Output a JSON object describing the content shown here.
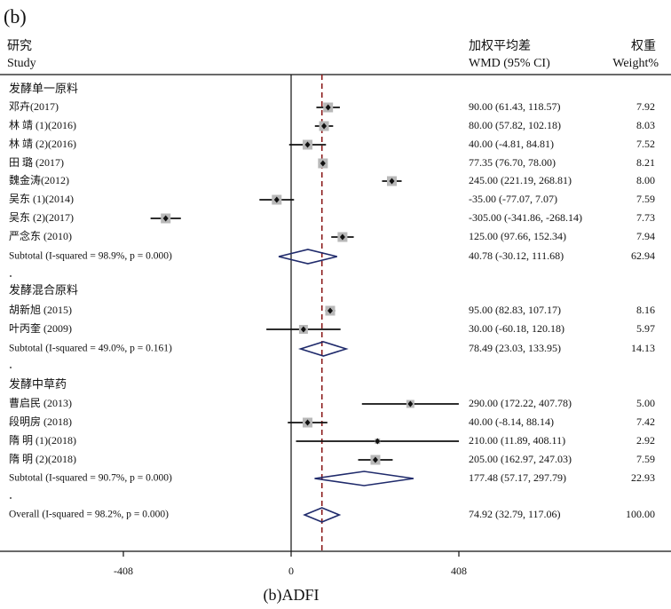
{
  "panel_label": "(b)",
  "headers": {
    "study_cn": "研究",
    "study_en": "Study",
    "wmd_cn": "加权平均差",
    "wmd_en": "WMD (95% CI)",
    "weight_cn": "权重",
    "weight_en": "Weight%"
  },
  "caption": "(b)ADFI",
  "colors": {
    "box": "#b8b8b8",
    "diamond": "#1f2a6b",
    "overall_line": "#8b1a1a",
    "ink": "#111111"
  },
  "chart_data": {
    "type": "forest",
    "title": "(b)ADFI",
    "xlabel": "",
    "ylabel": "",
    "xlim": [
      -408,
      408
    ],
    "xticks": [
      "-408",
      "0",
      "408"
    ],
    "xtick_values": [
      -408,
      0,
      408
    ],
    "null_line": 0,
    "overall_estimate": 74.92,
    "groups": [
      {
        "name": "发酵单一原料",
        "studies": [
          {
            "label": "邓卉(2017)",
            "est": 90.0,
            "lo": 61.43,
            "hi": 118.57,
            "ci_text": "90.00 (61.43, 118.57)",
            "weight": "7.92",
            "box": 11
          },
          {
            "label": "林 靖 (1)(2016)",
            "est": 80.0,
            "lo": 57.82,
            "hi": 102.18,
            "ci_text": "80.00 (57.82, 102.18)",
            "weight": "8.03",
            "box": 11
          },
          {
            "label": "林 靖 (2)(2016)",
            "est": 40.0,
            "lo": -4.81,
            "hi": 84.81,
            "ci_text": "40.00 (-4.81, 84.81)",
            "weight": "7.52",
            "box": 11
          },
          {
            "label": "田 璐 (2017)",
            "est": 77.35,
            "lo": 76.7,
            "hi": 78.0,
            "ci_text": "77.35 (76.70, 78.00)",
            "weight": "8.21",
            "box": 11
          },
          {
            "label": "魏金涛(2012)",
            "est": 245.0,
            "lo": 221.19,
            "hi": 268.81,
            "ci_text": "245.00 (221.19, 268.81)",
            "weight": "8.00",
            "box": 11
          },
          {
            "label": "吴东 (1)(2014)",
            "est": -35.0,
            "lo": -77.07,
            "hi": 7.07,
            "ci_text": "-35.00 (-77.07, 7.07)",
            "weight": "7.59",
            "box": 11
          },
          {
            "label": "吴东 (2)(2017)",
            "est": -305.0,
            "lo": -341.86,
            "hi": -268.14,
            "ci_text": "-305.00 (-341.86, -268.14)",
            "weight": "7.73",
            "box": 11
          },
          {
            "label": "严念东 (2010)",
            "est": 125.0,
            "lo": 97.66,
            "hi": 152.34,
            "ci_text": "125.00 (97.66, 152.34)",
            "weight": "7.94",
            "box": 11
          }
        ],
        "subtotal": {
          "label": "Subtotal  (I-squared = 98.9%, p = 0.000)",
          "est": 40.78,
          "lo": -30.12,
          "hi": 111.68,
          "ci_text": "40.78 (-30.12, 111.68)",
          "weight": "62.94"
        }
      },
      {
        "name": "发酵混合原料",
        "studies": [
          {
            "label": "胡新旭 (2015)",
            "est": 95.0,
            "lo": 82.83,
            "hi": 107.17,
            "ci_text": "95.00 (82.83, 107.17)",
            "weight": "8.16",
            "box": 11
          },
          {
            "label": "叶丙奎 (2009)",
            "est": 30.0,
            "lo": -60.18,
            "hi": 120.18,
            "ci_text": "30.00 (-60.18, 120.18)",
            "weight": "5.97",
            "box": 10
          }
        ],
        "subtotal": {
          "label": "Subtotal  (I-squared = 49.0%, p = 0.161)",
          "est": 78.49,
          "lo": 23.03,
          "hi": 133.95,
          "ci_text": "78.49 (23.03, 133.95)",
          "weight": "14.13"
        }
      },
      {
        "name": "发酵中草药",
        "studies": [
          {
            "label": "曹启民 (2013)",
            "est": 290.0,
            "lo": 172.22,
            "hi": 407.78,
            "ci_text": "290.00 (172.22, 407.78)",
            "weight": "5.00",
            "box": 9
          },
          {
            "label": "段明房 (2018)",
            "est": 40.0,
            "lo": -8.14,
            "hi": 88.14,
            "ci_text": "40.00 (-8.14, 88.14)",
            "weight": "7.42",
            "box": 11
          },
          {
            "label": "隋 明 (1)(2018)",
            "est": 210.0,
            "lo": 11.89,
            "hi": 408.11,
            "ci_text": "210.00 (11.89, 408.11)",
            "weight": "2.92",
            "box": 6
          },
          {
            "label": "隋 明 (2)(2018)",
            "est": 205.0,
            "lo": 162.97,
            "hi": 247.03,
            "ci_text": "205.00 (162.97, 247.03)",
            "weight": "7.59",
            "box": 11
          }
        ],
        "subtotal": {
          "label": "Subtotal  (I-squared = 90.7%, p = 0.000)",
          "est": 177.48,
          "lo": 57.17,
          "hi": 297.79,
          "ci_text": "177.48 (57.17, 297.79)",
          "weight": "22.93"
        }
      }
    ],
    "overall": {
      "label": "Overall  (I-squared = 98.2%, p = 0.000)",
      "est": 74.92,
      "lo": 32.79,
      "hi": 117.06,
      "ci_text": "74.92 (32.79, 117.06)",
      "weight": "100.00"
    }
  }
}
